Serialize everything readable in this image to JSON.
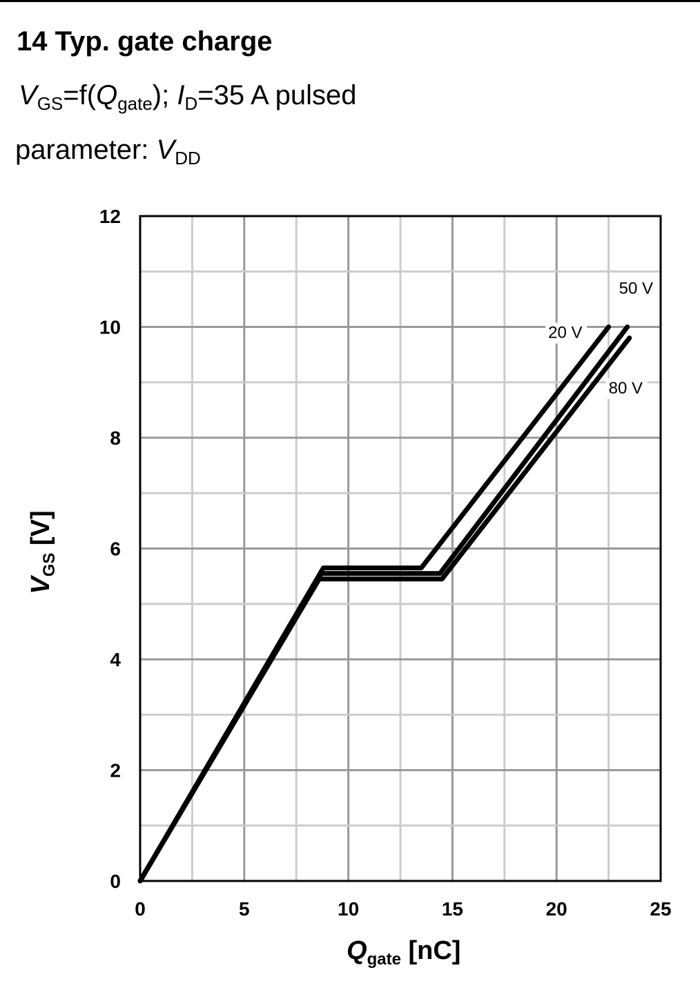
{
  "header": {
    "title": "14 Typ. gate charge",
    "subtitle": {
      "v": "V",
      "gs": "GS",
      "mid": "=f(",
      "q": "Q",
      "gate": "gate",
      "mid2": "); ",
      "i": "I",
      "d": "D",
      "tail": "=35 A pulsed"
    },
    "parameter": {
      "label": "parameter: ",
      "v": "V",
      "dd": "DD"
    }
  },
  "chart_data": {
    "type": "line",
    "title": "14 Typ. gate charge",
    "xlabel": "Qgate [nC]",
    "ylabel": "VGS [V]",
    "xlabel_parts": {
      "q": "Q",
      "sub": "gate",
      "unit": " [nC]"
    },
    "ylabel_parts": {
      "v": "V",
      "sub": "GS",
      "unit": " [V]"
    },
    "xlim": [
      0,
      25
    ],
    "ylim": [
      0,
      12
    ],
    "xticks": [
      0,
      5,
      10,
      15,
      20,
      25
    ],
    "yticks": [
      0,
      2,
      4,
      6,
      8,
      10,
      12
    ],
    "grid": true,
    "series": [
      {
        "name": "20 V",
        "x": [
          0,
          8.8,
          13.5,
          22.5
        ],
        "y": [
          0,
          5.65,
          5.65,
          10
        ]
      },
      {
        "name": "50 V",
        "x": [
          0,
          8.7,
          14.4,
          23.4
        ],
        "y": [
          0,
          5.55,
          5.55,
          10
        ]
      },
      {
        "name": "80 V",
        "x": [
          0,
          8.6,
          14.5,
          23.5
        ],
        "y": [
          0,
          5.45,
          5.45,
          9.8
        ]
      }
    ],
    "annotations": [
      {
        "text": "50 V",
        "x": 23.0,
        "y": 10.6
      },
      {
        "text": "20 V",
        "x": 19.6,
        "y": 9.8
      },
      {
        "text": "80 V",
        "x": 22.5,
        "y": 8.8
      }
    ],
    "colors": {
      "line": "#000000",
      "grid_minor": "#cccccc",
      "grid_major": "#999999",
      "label_bg": "#ffffff"
    }
  }
}
